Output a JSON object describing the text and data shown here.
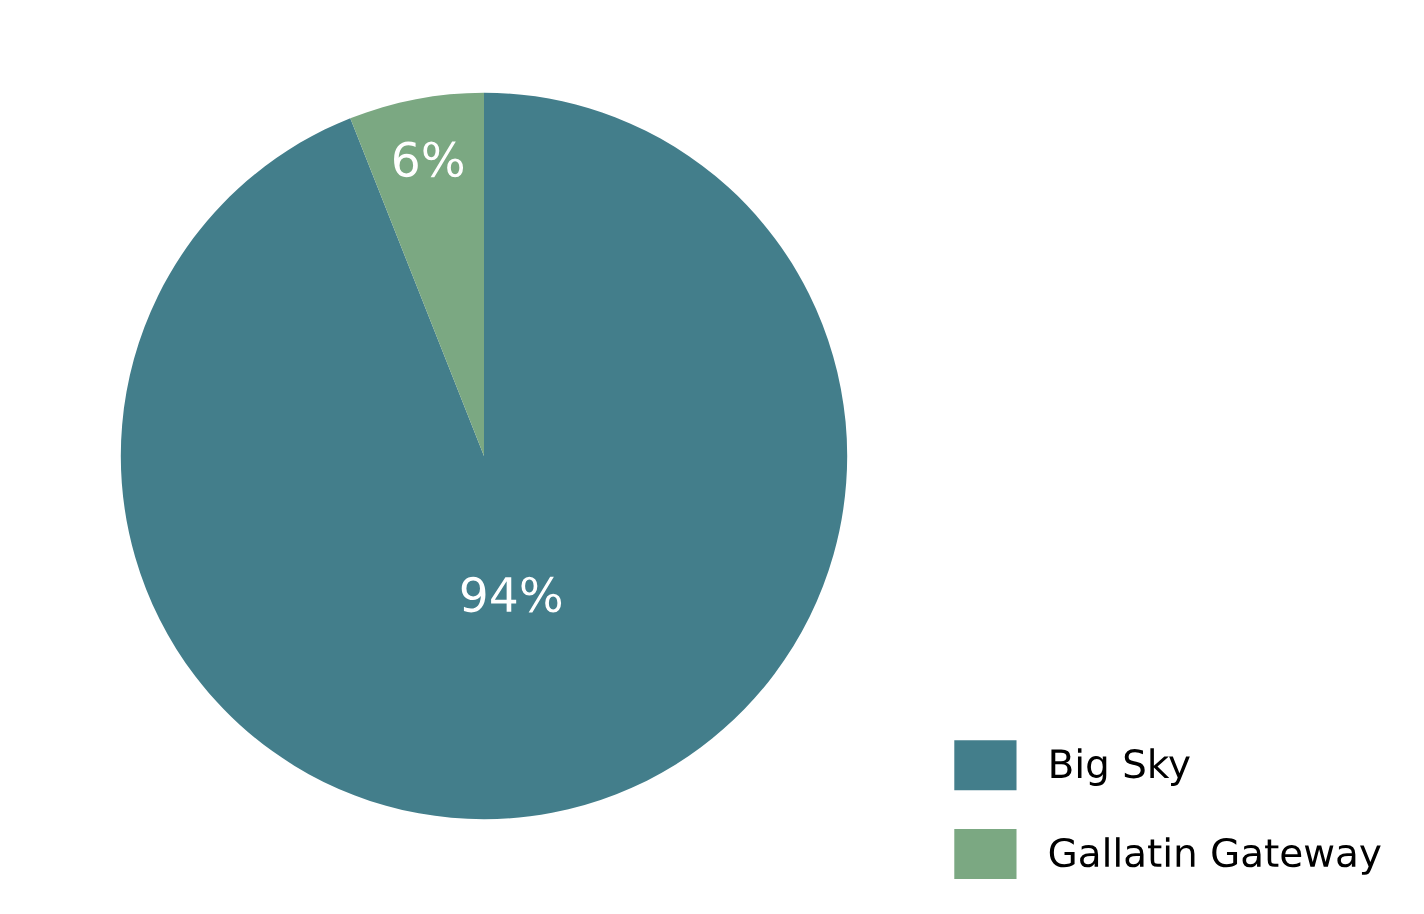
{
  "chart_data": {
    "type": "pie",
    "categories": [
      "Big Sky",
      "Gallatin Gateway"
    ],
    "values": [
      94,
      6
    ],
    "colors": [
      "#437e8b",
      "#7ba882"
    ],
    "value_labels": [
      "94%",
      "6%"
    ],
    "legend": "bottom right"
  }
}
